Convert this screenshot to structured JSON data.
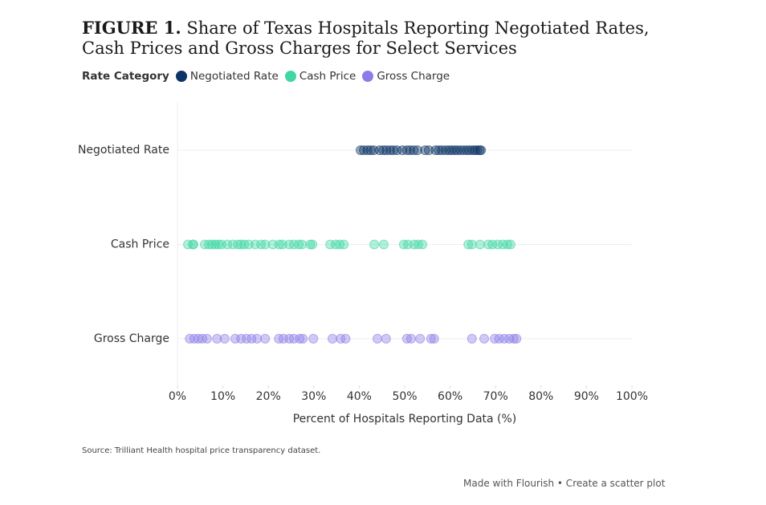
{
  "chart_data": {
    "type": "scatter",
    "figure_label": "FIGURE 1.",
    "title": "Share of Texas Hospitals Reporting Negotiated Rates, Cash Prices and Gross Charges for Select Services",
    "legend_title": "Rate Category",
    "x_label": "Percent of Hospitals Reporting Data (%)",
    "xlim": [
      0,
      100
    ],
    "xticks": [
      {
        "value": 0,
        "label": "0%"
      },
      {
        "value": 10,
        "label": "10%"
      },
      {
        "value": 20,
        "label": "20%"
      },
      {
        "value": 30,
        "label": "30%"
      },
      {
        "value": 40,
        "label": "40%"
      },
      {
        "value": 50,
        "label": "50%"
      },
      {
        "value": 60,
        "label": "60%"
      },
      {
        "value": 70,
        "label": "70%"
      },
      {
        "value": 80,
        "label": "80%"
      },
      {
        "value": 90,
        "label": "90%"
      },
      {
        "value": 100,
        "label": "100%"
      }
    ],
    "grid": true,
    "series": [
      {
        "name": "Negotiated Rate",
        "color": "#0d3466",
        "values": [
          40.3,
          41,
          41.8,
          42.5,
          43.2,
          44.5,
          45.3,
          46,
          46.8,
          47.5,
          48.3,
          49.5,
          50.5,
          51.2,
          52,
          52.8,
          54.5,
          55.3,
          56.8,
          57.5,
          58.2,
          59,
          59.7,
          60.3,
          61,
          61.6,
          62.3,
          63,
          63.7,
          64.3,
          65,
          65.5,
          66,
          66.5,
          66.8
        ]
      },
      {
        "name": "Cash Price",
        "color": "#3fd7a5",
        "values": [
          2.3,
          3.4,
          3.5,
          6,
          6.9,
          7.6,
          8.3,
          9,
          9.7,
          11,
          12.2,
          13.3,
          14,
          14.7,
          15.7,
          17.1,
          18.4,
          19.3,
          21,
          22.4,
          23.1,
          24.6,
          25.6,
          26.7,
          27.4,
          29.2,
          29.7,
          33.6,
          34.8,
          35.7,
          36.6,
          43.3,
          45.4,
          49.8,
          50.7,
          52.1,
          53,
          53.9,
          64,
          64.8,
          66.6,
          68.4,
          69.3,
          70.5,
          71.6,
          72.6,
          73.3
        ]
      },
      {
        "name": "Gross Charge",
        "color": "#8b7de8",
        "values": [
          2.7,
          3.7,
          4.6,
          5.5,
          6.5,
          8.7,
          10.4,
          12.7,
          14,
          15.2,
          16.3,
          17.5,
          19.3,
          22.3,
          23.3,
          24.6,
          25.6,
          26.9,
          27.6,
          29.9,
          34.1,
          35.9,
          37,
          44,
          45.9,
          50.5,
          51.4,
          53.4,
          55.8,
          56.5,
          64.8,
          67.5,
          69.8,
          70.8,
          71.9,
          73,
          74,
          74.6
        ]
      }
    ],
    "source": "Source: Trilliant Health hospital price transparency dataset.",
    "credit": "Made with Flourish • Create a scatter plot"
  }
}
